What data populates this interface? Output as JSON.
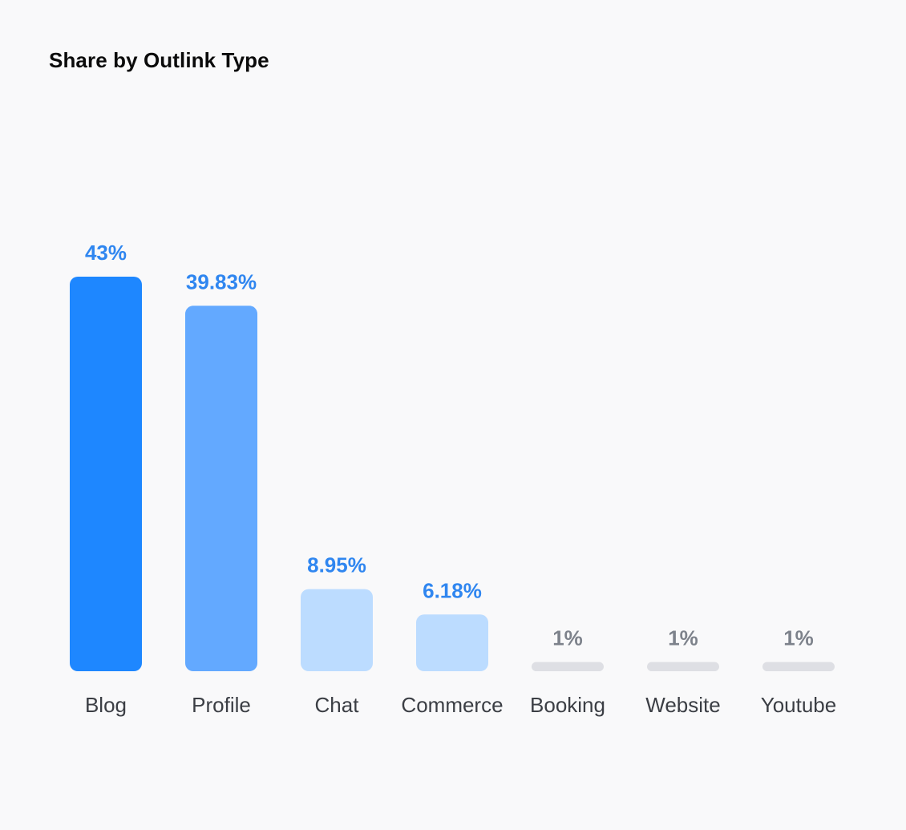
{
  "chart_data": {
    "type": "bar",
    "title": "Share by Outlink Type",
    "categories": [
      "Blog",
      "Profile",
      "Chat",
      "Commerce",
      "Booking",
      "Website",
      "Youtube"
    ],
    "values": [
      43,
      39.83,
      8.95,
      6.18,
      1,
      1,
      1
    ],
    "value_labels": [
      "43%",
      "39.83%",
      "8.95%",
      "6.18%",
      "1%",
      "1%",
      "1%"
    ],
    "unit": "%",
    "xlabel": "",
    "ylabel": "",
    "ylim": [
      0,
      43
    ],
    "grid": false,
    "legend": "none"
  },
  "colors": {
    "bar_primary": "#1e87ff",
    "bar_secondary": "#63a9ff",
    "bar_light": "#bcdcff",
    "bar_minimal": "#dedfe4",
    "label_blue": "#2f86f0",
    "label_gray": "#7d828b",
    "category_text": "#3b3e44",
    "background": "#f9f9fa"
  }
}
